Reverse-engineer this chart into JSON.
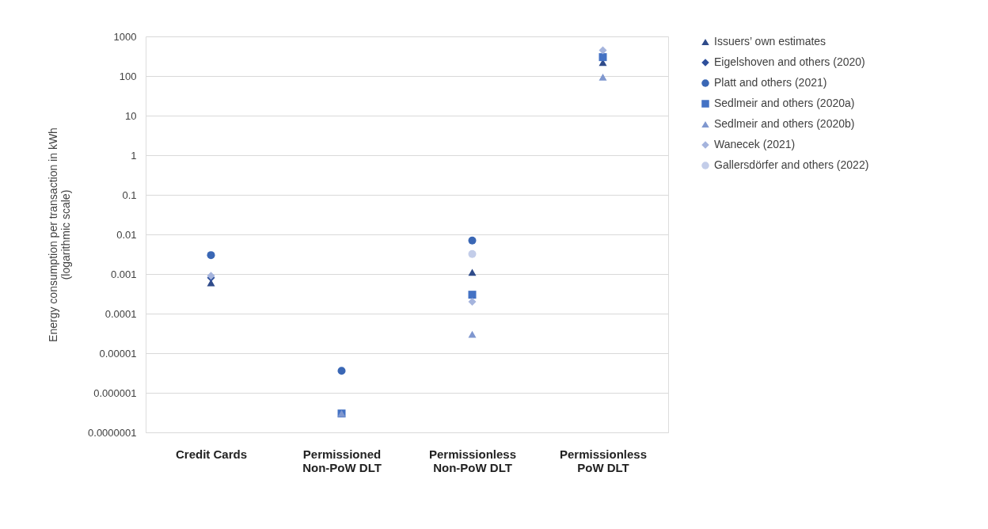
{
  "chart_data": {
    "type": "scatter",
    "ylabel": "Energy consumption per transaction in kWh\n(logarithmic scale)",
    "categories": [
      "Credit Cards",
      "Permissioned\nNon-PoW DLT",
      "Permissionless\nNon-PoW DLT",
      "Permissionless\nPoW DLT"
    ],
    "series": [
      {
        "name": "Issuers’ own estimates",
        "color": "#2f4b8a",
        "marker": "triangle",
        "values": [
          0.0006,
          null,
          0.0011,
          220
        ]
      },
      {
        "name": "Eigelshoven and others (2020)",
        "color": "#2e4f9b",
        "marker": "diamond",
        "values": [
          0.0008,
          null,
          null,
          null
        ]
      },
      {
        "name": "Platt and others (2021)",
        "color": "#3a67b5",
        "marker": "circle",
        "values": [
          0.003,
          3.6e-06,
          0.007,
          null
        ]
      },
      {
        "name": "Sedlmeir and others (2020a)",
        "color": "#4472c4",
        "marker": "square",
        "values": [
          null,
          3e-07,
          0.0003,
          300
        ]
      },
      {
        "name": "Sedlmeir and others (2020b)",
        "color": "#7f97cf",
        "marker": "triangle",
        "values": [
          null,
          3e-07,
          3e-05,
          94
        ]
      },
      {
        "name": "Wanecek (2021)",
        "color": "#a5b4dd",
        "marker": "diamond",
        "values": [
          0.0009,
          null,
          0.0002,
          445
        ]
      },
      {
        "name": "Gallersdörfer and others (2022)",
        "color": "#c3cde9",
        "marker": "circle",
        "values": [
          null,
          null,
          0.0032,
          null
        ]
      }
    ],
    "log": true,
    "ylim": [
      1e-07,
      1000
    ],
    "yticks": [
      {
        "value": 1e-07,
        "label": "0.0000001"
      },
      {
        "value": 1e-06,
        "label": "0.000001"
      },
      {
        "value": 1e-05,
        "label": "0.00001"
      },
      {
        "value": 0.0001,
        "label": "0.0001"
      },
      {
        "value": 0.001,
        "label": "0.001"
      },
      {
        "value": 0.01,
        "label": "0.01"
      },
      {
        "value": 0.1,
        "label": "0.1"
      },
      1,
      10,
      100,
      1000
    ],
    "grid": "y",
    "legend": "right"
  }
}
